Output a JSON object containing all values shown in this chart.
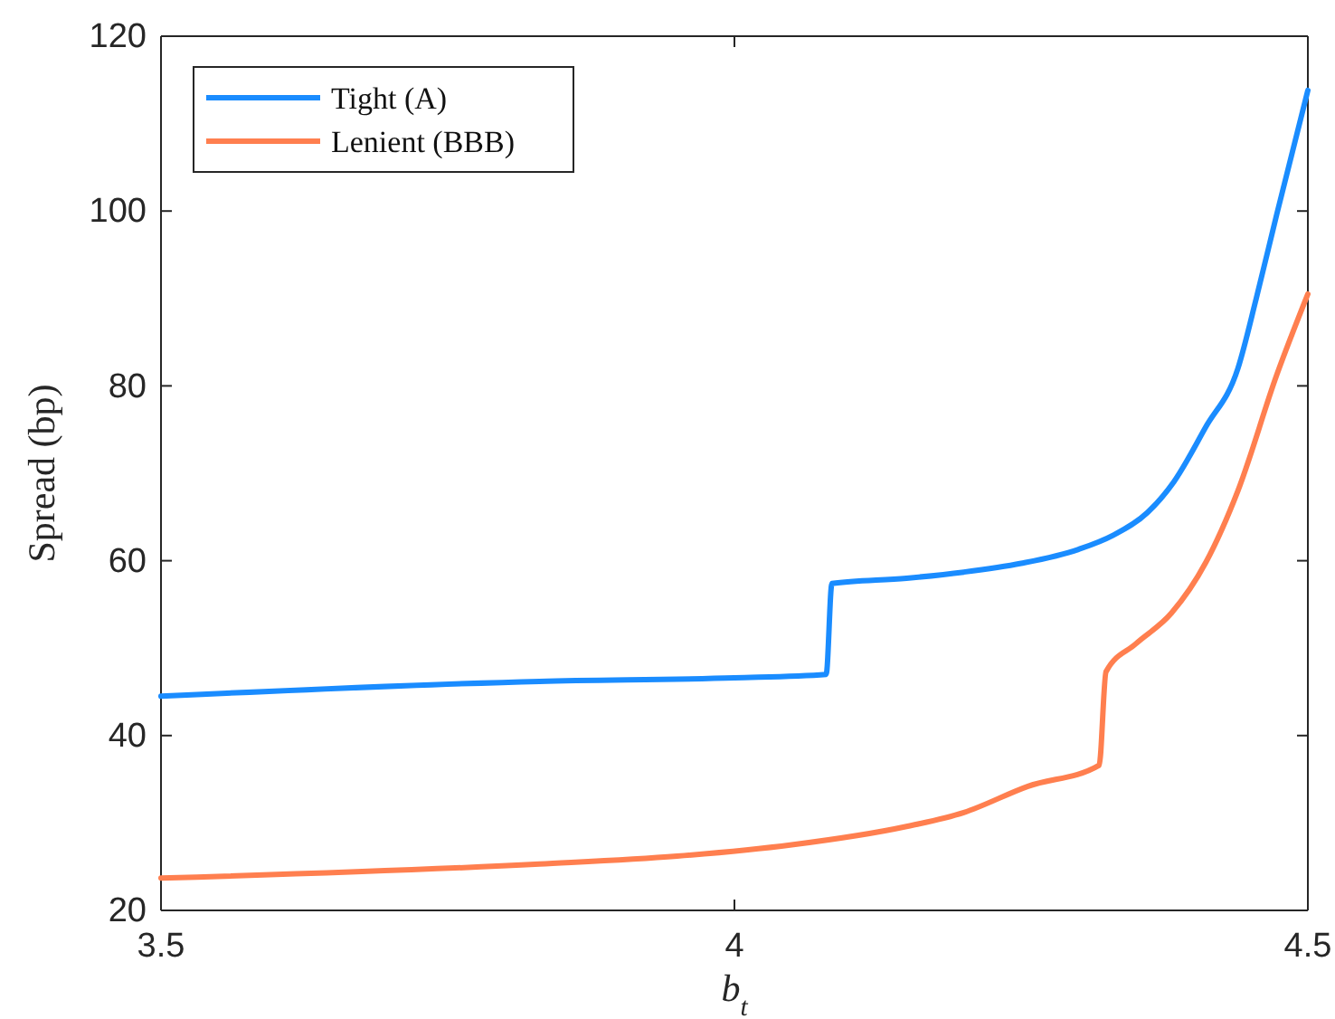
{
  "chart_data": {
    "type": "line",
    "xlabel": "b$_{t}$",
    "ylabel": "Spread (bp)",
    "xlim": [
      3.5,
      4.5
    ],
    "xticks": [
      3.5,
      4,
      4.5
    ],
    "ylim": [
      20,
      120
    ],
    "yticks": [
      20,
      40,
      60,
      80,
      100,
      120
    ],
    "grid": false,
    "legend": "top left",
    "line_style": "solid",
    "marker": "none",
    "series": [
      {
        "name": "Tight (A)",
        "color": "#1a8cff",
        "x": [
          3.5,
          3.83,
          4.0,
          4.08,
          4.085,
          4.15,
          4.2,
          4.25,
          4.3,
          4.33,
          4.36,
          4.383,
          4.411,
          4.439,
          4.455,
          4.473,
          4.5
        ],
        "values": [
          44.5,
          46.2,
          46.6,
          47.0,
          57.4,
          58,
          58.7,
          59.7,
          61.3,
          62.9,
          65.5,
          69,
          75.3,
          82,
          90,
          99.7,
          113.8
        ]
      },
      {
        "name": "Lenient (BBB)",
        "color": "#ff7f4f",
        "x": [
          3.5,
          3.83,
          3.95,
          4.05,
          4.15,
          4.2,
          4.256,
          4.318,
          4.324,
          4.35,
          4.381,
          4.411,
          4.439,
          4.473,
          4.5
        ],
        "values": [
          23.7,
          25.3,
          26.2,
          27.5,
          29.6,
          31.2,
          34.2,
          36.6,
          47.3,
          50.5,
          54,
          59.8,
          68,
          81.3,
          90.5
        ]
      }
    ]
  }
}
